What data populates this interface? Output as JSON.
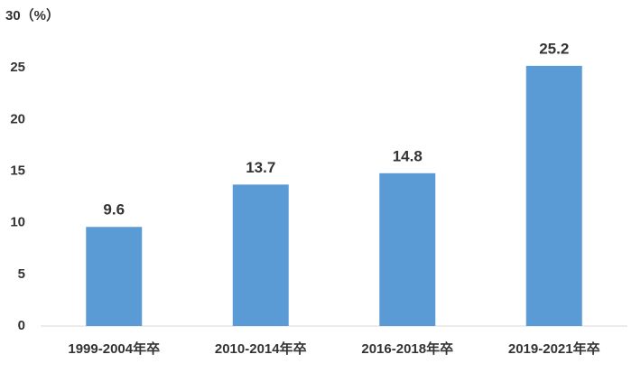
{
  "chart_data": {
    "type": "bar",
    "categories": [
      "1999-2004年卒",
      "2010-2014年卒",
      "2016-2018年卒",
      "2019-2021年卒"
    ],
    "values": [
      9.6,
      13.7,
      14.8,
      25.2
    ],
    "color": "#5b9bd5",
    "ylim": [
      0,
      30
    ],
    "yticks": [
      0,
      5,
      10,
      15,
      20,
      25,
      {
        "value": 30,
        "label": "30（%）"
      }
    ],
    "grid": false
  }
}
